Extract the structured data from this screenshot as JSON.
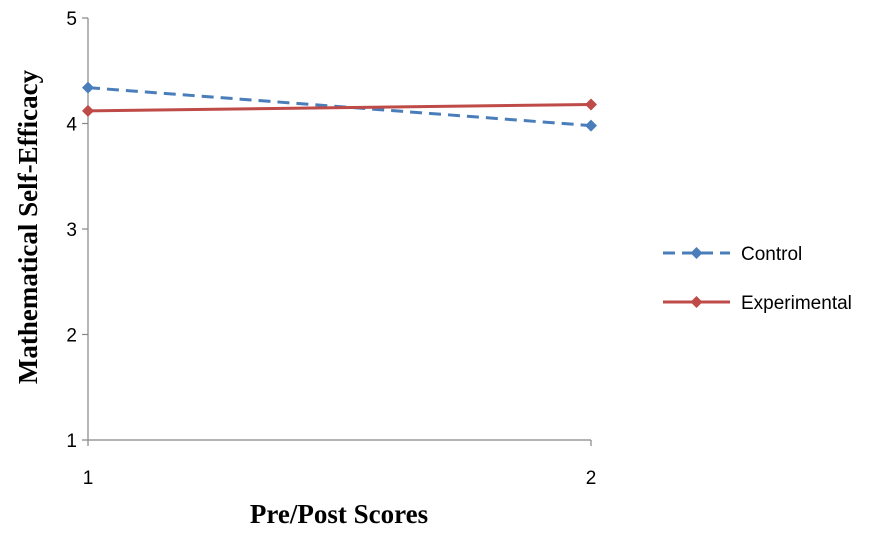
{
  "chart_data": {
    "type": "line",
    "title": "",
    "xlabel": "Pre/Post Scores",
    "ylabel": "Mathematical Self-Efficacy",
    "x": [
      1,
      2
    ],
    "x_ticks": [
      "1",
      "2"
    ],
    "ylim": [
      1,
      5
    ],
    "y_ticks": [
      "1",
      "2",
      "3",
      "4",
      "5"
    ],
    "grid": false,
    "legend_position": "right",
    "series": [
      {
        "name": "Control",
        "values": [
          4.34,
          3.98
        ],
        "color": "#4a7ebb",
        "line_style": "dashed",
        "marker": "diamond"
      },
      {
        "name": "Experimental",
        "values": [
          4.12,
          4.18
        ],
        "color": "#be4b48",
        "line_style": "solid",
        "marker": "diamond"
      }
    ]
  }
}
